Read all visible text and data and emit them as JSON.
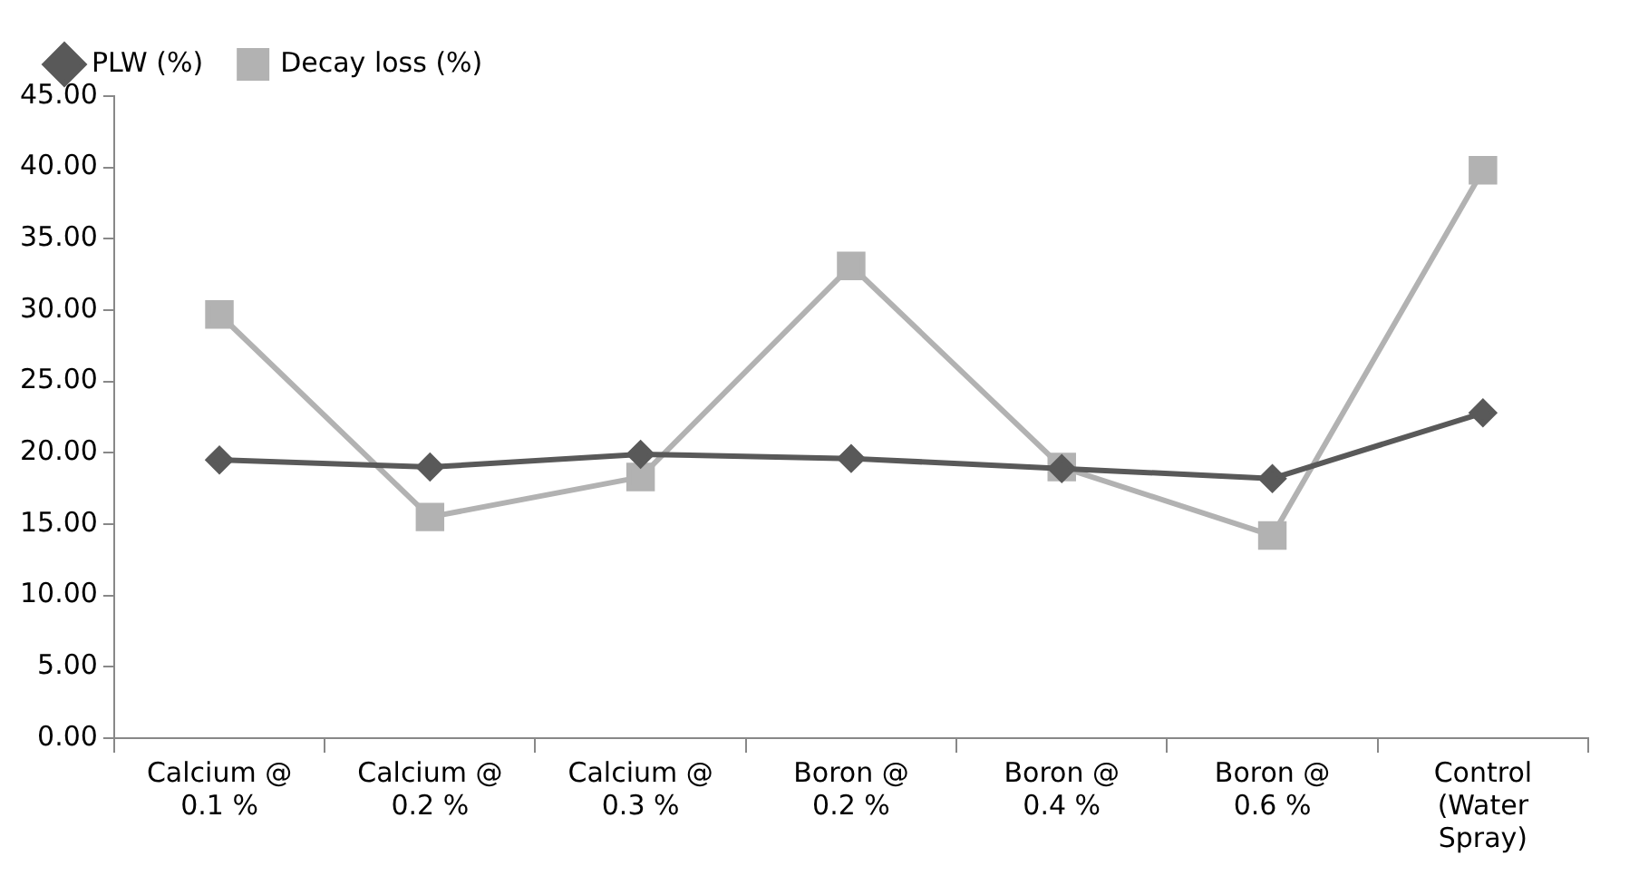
{
  "chart_data": {
    "type": "line",
    "categories": [
      "Calcium @ 0.1 %",
      "Calcium @ 0.2 %",
      "Calcium @ 0.3 %",
      "Boron @ 0.2 %",
      "Boron @ 0.4 %",
      "Boron @ 0.6 %",
      "Control (Water Spray)"
    ],
    "series": [
      {
        "name": "PLW (%)",
        "color": "#595959",
        "marker": "diamond",
        "values": [
          19.5,
          19.0,
          19.9,
          19.6,
          18.9,
          18.2,
          22.8
        ]
      },
      {
        "name": "Decay loss (%)",
        "color": "#b2b2b2",
        "marker": "square",
        "values": [
          29.7,
          15.5,
          18.3,
          33.1,
          19.0,
          14.2,
          39.8
        ]
      }
    ],
    "ylim": [
      0,
      45
    ],
    "yticks": [
      {
        "value": 0,
        "label": "0.00"
      },
      {
        "value": 5,
        "label": "5.00"
      },
      {
        "value": 10,
        "label": "10.00"
      },
      {
        "value": 15,
        "label": "15.00"
      },
      {
        "value": 20,
        "label": "20.00"
      },
      {
        "value": 25,
        "label": "25.00"
      },
      {
        "value": 30,
        "label": "30.00"
      },
      {
        "value": 35,
        "label": "35.00"
      },
      {
        "value": 40,
        "label": "40.00"
      },
      {
        "value": 45,
        "label": "45.00"
      }
    ],
    "grid": false,
    "legend": "top left",
    "line_style": "solid"
  }
}
